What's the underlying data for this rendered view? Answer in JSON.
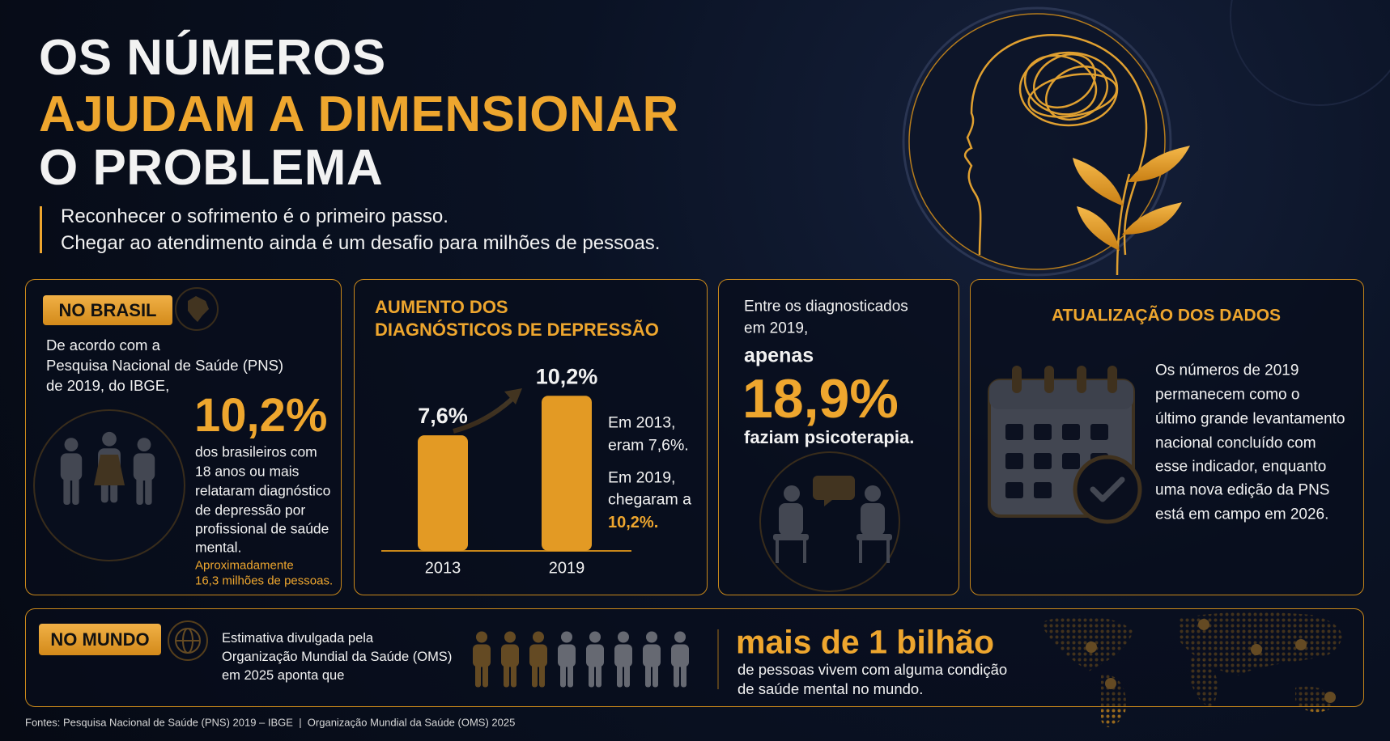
{
  "header": {
    "title_lines": [
      "OS NÚMEROS",
      "AJUDAM A DIMENSIONAR",
      "O PROBLEMA"
    ],
    "subtitle_lines": [
      "Reconhecer o sofrimento é o primeiro passo.",
      "Chegar ao atendimento ainda é um desafio para milhões de pessoas."
    ]
  },
  "brasil": {
    "badge": "NO BRASIL",
    "intro_lines": [
      "De acordo com a",
      "Pesquisa Nacional de Saúde (PNS)",
      "de 2019, do IBGE,"
    ],
    "highlight": "10,2%",
    "text_lines": [
      "dos brasileiros com",
      "18 anos ou mais",
      "relataram diagnóstico",
      "de depressão por",
      "profissional de saúde",
      "mental."
    ],
    "note_lines": [
      "Aproximadamente",
      "16,3 milhões de pessoas."
    ]
  },
  "chart_data": {
    "type": "bar",
    "title": [
      "AUMENTO DOS",
      "DIAGNÓSTICOS DE DEPRESSÃO"
    ],
    "categories": [
      "2013",
      "2019"
    ],
    "values": [
      7.6,
      10.2
    ],
    "value_labels": [
      "7,6%",
      "10,2%"
    ],
    "color": "#e39a24",
    "annotations": [
      "Em 2013,",
      "eram 7,6%.",
      "Em 2019,",
      "chegaram a",
      "10,2%."
    ]
  },
  "psicoterapia": {
    "intro_lines": [
      "Entre os diagnosticados",
      "em 2019,"
    ],
    "lead": "apenas",
    "highlight": "18,9%",
    "text": "faziam psicoterapia."
  },
  "atualizacao": {
    "title": "ATUALIZAÇÃO DOS DADOS",
    "text_lines": [
      "Os números de 2019",
      "permanecem como o",
      "último grande levantamento",
      "nacional concluído com",
      "esse indicador, enquanto",
      "uma nova edição da PNS",
      "está em campo em 2026."
    ]
  },
  "mundo": {
    "badge": "NO MUNDO",
    "text_lines": [
      "Estimativa divulgada pela",
      "Organização Mundial da Saúde (OMS)",
      "em 2025 aponta que"
    ],
    "highlight": "mais de 1 bilhão",
    "sub_lines": [
      "de pessoas vivem com alguma condição",
      "de saúde mental no mundo."
    ]
  },
  "footer": "Fontes: Pesquisa Nacional de Saúde (PNS) 2019 – IBGE  |  Organização Mundial da Saúde (OMS) 2025"
}
